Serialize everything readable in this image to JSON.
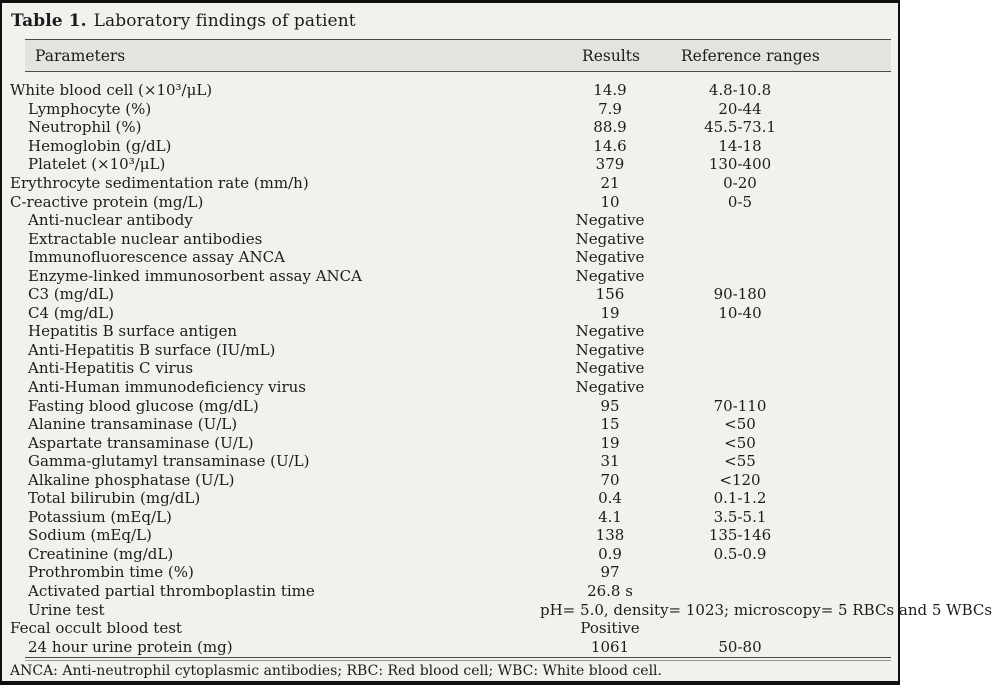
{
  "table": {
    "title_label": "Table 1.",
    "title_text": "Laboratory findings of patient",
    "header": {
      "parameters": "Parameters",
      "results": "Results",
      "reference": "Reference ranges"
    },
    "rows": [
      {
        "parameter": "White blood cell (×10³/μL)",
        "indent": false,
        "result": "14.9",
        "reference": "4.8-10.8"
      },
      {
        "parameter": "Lymphocyte (%)",
        "indent": true,
        "result": "7.9",
        "reference": "20-44"
      },
      {
        "parameter": "Neutrophil (%)",
        "indent": true,
        "result": "88.9",
        "reference": "45.5-73.1"
      },
      {
        "parameter": "Hemoglobin (g/dL)",
        "indent": true,
        "result": "14.6",
        "reference": "14-18"
      },
      {
        "parameter": "Platelet (×10³/μL)",
        "indent": true,
        "result": "379",
        "reference": "130-400"
      },
      {
        "parameter": "Erythrocyte sedimentation rate (mm/h)",
        "indent": false,
        "result": "21",
        "reference": "0-20"
      },
      {
        "parameter": "C-reactive protein (mg/L)",
        "indent": false,
        "result": "10",
        "reference": "0-5"
      },
      {
        "parameter": "Anti-nuclear antibody",
        "indent": true,
        "result": "Negative",
        "reference": ""
      },
      {
        "parameter": "Extractable nuclear antibodies",
        "indent": true,
        "result": "Negative",
        "reference": ""
      },
      {
        "parameter": "Immunofluorescence assay ANCA",
        "indent": true,
        "result": "Negative",
        "reference": ""
      },
      {
        "parameter": "Enzyme-linked immunosorbent assay ANCA",
        "indent": true,
        "result": "Negative",
        "reference": ""
      },
      {
        "parameter": "C3 (mg/dL)",
        "indent": true,
        "result": "156",
        "reference": "90-180"
      },
      {
        "parameter": "C4 (mg/dL)",
        "indent": true,
        "result": "19",
        "reference": "10-40"
      },
      {
        "parameter": "Hepatitis B surface antigen",
        "indent": true,
        "result": "Negative",
        "reference": ""
      },
      {
        "parameter": "Anti-Hepatitis B surface (IU/mL)",
        "indent": true,
        "result": "Negative",
        "reference": ""
      },
      {
        "parameter": "Anti-Hepatitis C virus",
        "indent": true,
        "result": "Negative",
        "reference": ""
      },
      {
        "parameter": "Anti-Human immunodeficiency virus",
        "indent": true,
        "result": "Negative",
        "reference": ""
      },
      {
        "parameter": "Fasting blood glucose (mg/dL)",
        "indent": true,
        "result": "95",
        "reference": "70-110"
      },
      {
        "parameter": "Alanine transaminase (U/L)",
        "indent": true,
        "result": "15",
        "reference": "<50"
      },
      {
        "parameter": "Aspartate transaminase (U/L)",
        "indent": true,
        "result": "19",
        "reference": "<50"
      },
      {
        "parameter": "Gamma-glutamyl transaminase (U/L)",
        "indent": true,
        "result": "31",
        "reference": "<55"
      },
      {
        "parameter": "Alkaline phosphatase (U/L)",
        "indent": true,
        "result": "70",
        "reference": "<120"
      },
      {
        "parameter": "Total bilirubin (mg/dL)",
        "indent": true,
        "result": "0.4",
        "reference": "0.1-1.2"
      },
      {
        "parameter": "Potassium (mEq/L)",
        "indent": true,
        "result": "4.1",
        "reference": "3.5-5.1"
      },
      {
        "parameter": "Sodium (mEq/L)",
        "indent": true,
        "result": "138",
        "reference": "135-146"
      },
      {
        "parameter": "Creatinine (mg/dL)",
        "indent": true,
        "result": "0.9",
        "reference": "0.5-0.9"
      },
      {
        "parameter": "Prothrombin time (%)",
        "indent": true,
        "result": "97",
        "reference": ""
      },
      {
        "parameter": "Activated partial thromboplastin time",
        "indent": true,
        "result": "26.8 s",
        "reference": ""
      },
      {
        "parameter": "Urine test",
        "indent": true,
        "result": "pH= 5.0, density= 1023; microscopy= 5 RBCs and 5 WBCs",
        "reference": "",
        "span": true
      },
      {
        "parameter": "Fecal occult blood test",
        "indent": false,
        "result": "Positive",
        "reference": ""
      },
      {
        "parameter": "24 hour urine protein (mg)",
        "indent": true,
        "result": "1061",
        "reference": "50-80"
      }
    ],
    "footnote": "ANCA: Anti-neutrophil cytoplasmic antibodies; RBC: Red blood cell; WBC: White blood cell.",
    "colors": {
      "background": "#f1f1ee",
      "header_band": "#e3e3e0",
      "border": "#101010",
      "rule": "#4a4a4a"
    }
  }
}
